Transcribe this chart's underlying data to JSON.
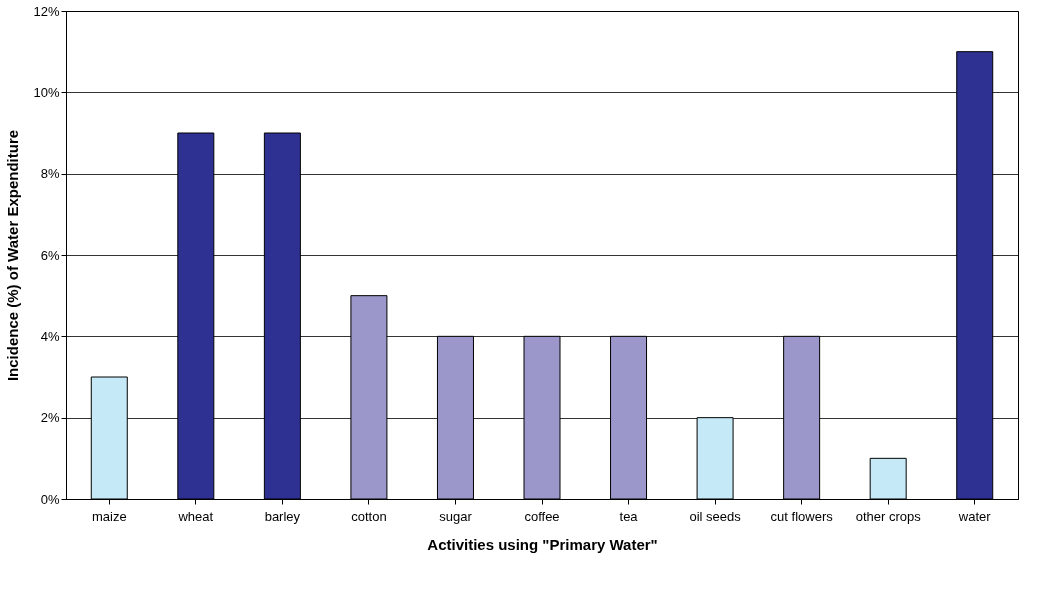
{
  "chart_data": {
    "type": "bar",
    "xlabel": "Activities using \"Primary Water\"",
    "ylabel": "Incidence (%) of Water Expenditure",
    "categories": [
      "maize",
      "wheat",
      "barley",
      "cotton",
      "sugar",
      "coffee",
      "tea",
      "oil seeds",
      "cut flowers",
      "other crops",
      "water"
    ],
    "values": [
      3,
      9,
      9,
      5,
      4,
      4,
      4,
      2,
      4,
      1,
      11
    ],
    "colors": [
      "#c6e9f8",
      "#2e3192",
      "#2e3192",
      "#9b97ca",
      "#9b97ca",
      "#9b97ca",
      "#9b97ca",
      "#c6e9f8",
      "#9b97ca",
      "#c6e9f8",
      "#2e3192"
    ],
    "ylim": [
      0,
      12
    ],
    "yticks": [
      {
        "value": 0,
        "label": "0%"
      },
      {
        "value": 2,
        "label": "2%"
      },
      {
        "value": 4,
        "label": "4%"
      },
      {
        "value": 6,
        "label": "6%"
      },
      {
        "value": 8,
        "label": "8%"
      },
      {
        "value": 10,
        "label": "10%"
      },
      {
        "value": 12,
        "label": "12%"
      }
    ],
    "grid": "y",
    "legend": false
  }
}
